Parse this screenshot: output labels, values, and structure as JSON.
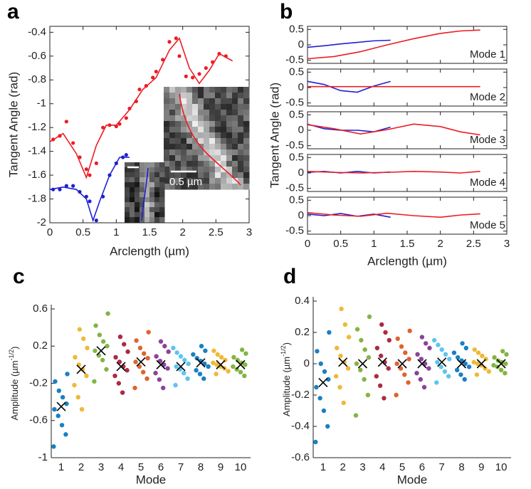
{
  "chart_data": [
    {
      "panel": "a",
      "type": "line",
      "y_label": "Tangent Angle (rad)",
      "x_label": "Arclength (µm)",
      "scale_bar_label": "0.5 µm",
      "xlim": [
        0,
        3
      ],
      "xticks": [
        0,
        0.5,
        1,
        1.5,
        2,
        2.5,
        3
      ],
      "ylim": [
        -2,
        -0.35
      ],
      "yticks": [
        -2,
        -1.8,
        -1.6,
        -1.4,
        -1.2,
        -1,
        -0.8,
        -0.6,
        -0.4
      ],
      "series": [
        {
          "style": "markers",
          "color": "#ed1c24",
          "x": [
            0.05,
            0.15,
            0.25,
            0.35,
            0.45,
            0.55,
            0.6,
            0.7,
            0.8,
            0.9,
            1.0,
            1.05,
            1.15,
            1.2,
            1.3,
            1.35,
            1.45,
            1.55,
            1.6,
            1.7,
            1.8,
            1.9,
            1.95,
            2.05,
            2.15,
            2.25,
            2.35,
            2.45,
            2.55,
            2.65
          ],
          "values": [
            -1.3,
            -1.27,
            -1.15,
            -1.33,
            -1.45,
            -1.55,
            -1.6,
            -1.5,
            -1.2,
            -1.18,
            -1.19,
            -1.17,
            -1.12,
            -1.04,
            -0.98,
            -0.88,
            -0.85,
            -0.78,
            -0.73,
            -0.63,
            -0.48,
            -0.45,
            -0.6,
            -0.77,
            -0.78,
            -0.75,
            -0.7,
            -0.65,
            -0.58,
            -0.6
          ]
        },
        {
          "style": "line",
          "color": "#ed1c24",
          "x": [
            0,
            0.2,
            0.4,
            0.55,
            0.7,
            0.85,
            1.0,
            1.2,
            1.4,
            1.6,
            1.8,
            1.95,
            2.1,
            2.25,
            2.4,
            2.55,
            2.75
          ],
          "values": [
            -1.32,
            -1.25,
            -1.42,
            -1.62,
            -1.35,
            -1.18,
            -1.18,
            -1.05,
            -0.88,
            -0.78,
            -0.55,
            -0.45,
            -0.7,
            -0.83,
            -0.72,
            -0.58,
            -0.64
          ]
        },
        {
          "style": "markers",
          "color": "#2020d0",
          "x": [
            0.05,
            0.15,
            0.25,
            0.35,
            0.45,
            0.55,
            0.6,
            0.7,
            0.8,
            0.9,
            1.0,
            1.1,
            1.15
          ],
          "values": [
            -1.72,
            -1.72,
            -1.69,
            -1.69,
            -1.74,
            -1.78,
            -1.82,
            -1.98,
            -1.78,
            -1.6,
            -1.5,
            -1.45,
            -1.43
          ]
        },
        {
          "style": "line",
          "color": "#2020d0",
          "x": [
            0,
            0.2,
            0.4,
            0.55,
            0.65,
            0.75,
            0.9,
            1.05,
            1.2
          ],
          "values": [
            -1.72,
            -1.7,
            -1.72,
            -1.8,
            -1.98,
            -1.82,
            -1.6,
            -1.45,
            -1.45
          ]
        }
      ]
    },
    {
      "panel": "b",
      "type": "line",
      "y_label": "Tangent Angle (rad)",
      "x_label": "Arclength (µm)",
      "xlim": [
        0,
        3
      ],
      "xticks": [
        0,
        0.5,
        1,
        1.5,
        2,
        2.5,
        3
      ],
      "ylim": [
        -0.6,
        0.6
      ],
      "yticks": [
        -0.5,
        0,
        0.5
      ],
      "subplots": [
        {
          "label": "Mode 1",
          "series": [
            {
              "color": "#2020d0",
              "x": [
                0,
                0.25,
                0.5,
                0.75,
                1.0,
                1.25
              ],
              "values": [
                -0.08,
                -0.03,
                0.03,
                0.08,
                0.13,
                0.15
              ]
            },
            {
              "color": "#ed1c24",
              "x": [
                0,
                0.4,
                0.8,
                1.2,
                1.6,
                2.0,
                2.3,
                2.6
              ],
              "values": [
                -0.45,
                -0.38,
                -0.22,
                0,
                0.2,
                0.37,
                0.45,
                0.48
              ]
            }
          ]
        },
        {
          "label": "Mode 2",
          "series": [
            {
              "color": "#2020d0",
              "x": [
                0,
                0.25,
                0.5,
                0.75,
                1.0,
                1.25
              ],
              "values": [
                0.2,
                0.1,
                -0.1,
                -0.15,
                0.05,
                0.2
              ]
            },
            {
              "color": "#ed1c24",
              "x": [
                0,
                0.4,
                0.8,
                1.2,
                1.6,
                2.0,
                2.3,
                2.6
              ],
              "values": [
                0.03,
                0.03,
                0.03,
                0.03,
                0.03,
                0.03,
                0.03,
                0.03
              ]
            }
          ]
        },
        {
          "label": "Mode 3",
          "series": [
            {
              "color": "#2020d0",
              "x": [
                0,
                0.25,
                0.5,
                0.75,
                1.0,
                1.25
              ],
              "values": [
                0.2,
                0.05,
                0,
                0,
                -0.05,
                0.1
              ]
            },
            {
              "color": "#ed1c24",
              "x": [
                0,
                0.4,
                0.8,
                1.2,
                1.6,
                2.0,
                2.3,
                2.6
              ],
              "values": [
                0.18,
                0.05,
                -0.12,
                0.02,
                0.2,
                0.12,
                -0.05,
                -0.15
              ]
            }
          ]
        },
        {
          "label": "Mode 4",
          "series": [
            {
              "color": "#2020d0",
              "x": [
                0,
                0.25,
                0.5,
                0.75,
                1.0,
                1.25
              ],
              "values": [
                0.02,
                0.05,
                0,
                0.05,
                0,
                0.03
              ]
            },
            {
              "color": "#ed1c24",
              "x": [
                0,
                0.4,
                0.8,
                1.2,
                1.6,
                2.0,
                2.3,
                2.6
              ],
              "values": [
                0.05,
                0.02,
                0,
                0.02,
                0.05,
                0.03,
                0,
                0.05
              ]
            }
          ]
        },
        {
          "label": "Mode 5",
          "series": [
            {
              "color": "#2020d0",
              "x": [
                0,
                0.25,
                0.5,
                0.75,
                1.0,
                1.25
              ],
              "values": [
                0.05,
                0,
                0.07,
                -0.02,
                0.05,
                -0.05
              ]
            },
            {
              "color": "#ed1c24",
              "x": [
                0,
                0.4,
                0.8,
                1.2,
                1.6,
                2.0,
                2.3,
                2.6
              ],
              "values": [
                0.1,
                0.02,
                -0.02,
                0.08,
                0,
                -0.05,
                0.02,
                0.06
              ]
            }
          ]
        }
      ]
    },
    {
      "panel": "c",
      "type": "strip",
      "y_label": {
        "text": "Amplitude (µm",
        "sup": "-1/2",
        "end": ")"
      },
      "x_label": "Mode",
      "categories": [
        1,
        2,
        3,
        4,
        5,
        6,
        7,
        8,
        9,
        10
      ],
      "colors": [
        "#0072bd",
        "#edb120",
        "#77ac30",
        "#a2142f",
        "#d95319",
        "#7e2f8e",
        "#4dbeee",
        "#0072bd",
        "#edb120",
        "#77ac30"
      ],
      "ylim": [
        -1,
        0.6
      ],
      "yticks": [
        -1,
        -0.6,
        -0.2,
        0.2,
        0.6
      ],
      "points": [
        [
          -0.88,
          -0.75,
          -0.65,
          -0.55,
          -0.48,
          -0.42,
          -0.35,
          -0.28,
          -0.18,
          -0.1
        ],
        [
          -0.48,
          -0.35,
          -0.22,
          -0.12,
          -0.05,
          0,
          0.08,
          0.18,
          0.28,
          0.38
        ],
        [
          -0.18,
          -0.05,
          0.05,
          0.1,
          0.15,
          0.2,
          0.25,
          0.32,
          0.42,
          0.55
        ],
        [
          -0.3,
          -0.2,
          -0.12,
          -0.06,
          -0.02,
          0.03,
          0.08,
          0.14,
          0.22,
          0.3
        ],
        [
          -0.25,
          -0.15,
          -0.08,
          -0.02,
          0.03,
          0.07,
          0.12,
          0.18,
          0.26,
          0.35
        ],
        [
          -0.25,
          -0.16,
          -0.09,
          -0.04,
          0,
          0.04,
          0.09,
          0.14,
          0.2,
          0.25
        ],
        [
          -0.22,
          -0.15,
          -0.09,
          -0.05,
          -0.02,
          0.01,
          0.05,
          0.09,
          0.13,
          0.18
        ],
        [
          -0.15,
          -0.1,
          -0.06,
          -0.02,
          0.01,
          0.04,
          0.07,
          0.11,
          0.15,
          0.2
        ],
        [
          -0.1,
          -0.07,
          -0.04,
          -0.02,
          0,
          0.02,
          0.05,
          0.08,
          0.11,
          0.15
        ],
        [
          -0.12,
          -0.08,
          -0.05,
          -0.02,
          0,
          0.02,
          0.05,
          0.08,
          0.12,
          0.16
        ]
      ],
      "means": [
        -0.45,
        -0.05,
        0.15,
        -0.02,
        0.03,
        0,
        -0.02,
        0.02,
        0,
        0
      ]
    },
    {
      "panel": "d",
      "type": "strip",
      "y_label": {
        "text": "Amplitude (µm",
        "sup": "-1/2",
        "end": ")"
      },
      "x_label": "Mode",
      "categories": [
        1,
        2,
        3,
        4,
        5,
        6,
        7,
        8,
        9,
        10
      ],
      "colors": [
        "#0072bd",
        "#edb120",
        "#77ac30",
        "#a2142f",
        "#d95319",
        "#7e2f8e",
        "#4dbeee",
        "#0072bd",
        "#edb120",
        "#77ac30"
      ],
      "ylim": [
        -0.6,
        0.4
      ],
      "yticks": [
        -0.6,
        -0.4,
        -0.2,
        0,
        0.2,
        0.4
      ],
      "points": [
        [
          -0.5,
          -0.4,
          -0.3,
          -0.22,
          -0.15,
          -0.1,
          -0.05,
          0,
          0.08,
          0.2
        ],
        [
          -0.25,
          -0.15,
          -0.08,
          -0.03,
          0.01,
          0.05,
          0.1,
          0.17,
          0.25,
          0.35
        ],
        [
          -0.33,
          -0.2,
          -0.1,
          -0.04,
          0,
          0.04,
          0.09,
          0.15,
          0.22,
          0.3
        ],
        [
          -0.22,
          -0.14,
          -0.08,
          -0.03,
          0.01,
          0.05,
          0.1,
          0.15,
          0.2,
          0.25
        ],
        [
          -0.2,
          -0.12,
          -0.07,
          -0.03,
          0,
          0.03,
          0.07,
          0.11,
          0.16,
          0.21
        ],
        [
          -0.15,
          -0.1,
          -0.06,
          -0.03,
          0,
          0.03,
          0.06,
          0.1,
          0.13,
          0.17
        ],
        [
          -0.12,
          -0.08,
          -0.05,
          -0.02,
          0.01,
          0.03,
          0.06,
          0.09,
          0.12,
          0.15
        ],
        [
          -0.1,
          -0.07,
          -0.04,
          -0.02,
          0,
          0.02,
          0.04,
          0.07,
          0.1,
          0.13
        ],
        [
          -0.07,
          -0.05,
          -0.03,
          -0.01,
          0,
          0.01,
          0.03,
          0.05,
          0.07,
          0.09
        ],
        [
          -0.06,
          -0.04,
          -0.02,
          -0.01,
          0,
          0.01,
          0.02,
          0.04,
          0.06,
          0.08
        ]
      ],
      "means": [
        -0.12,
        0.01,
        0,
        0.01,
        0,
        0,
        0.01,
        0,
        0,
        0
      ]
    }
  ]
}
